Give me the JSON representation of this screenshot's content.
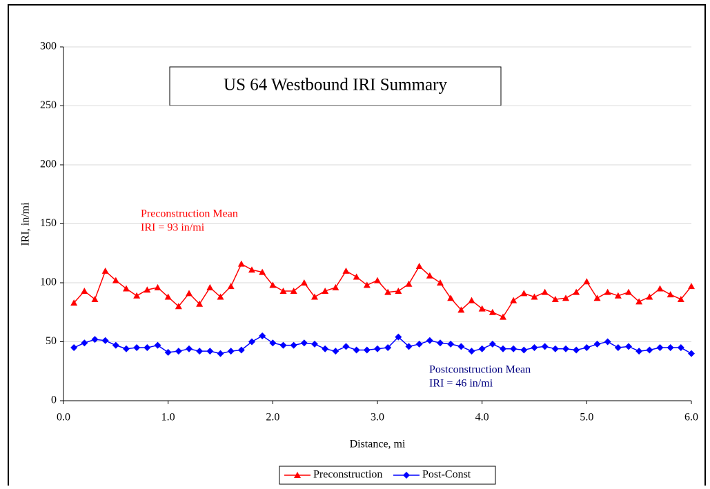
{
  "chart_data": {
    "type": "line",
    "title": "US 64 Westbound IRI Summary",
    "x_label": "Distance, mi",
    "y_label": "IRI, in/mi",
    "x": [
      0.1,
      0.2,
      0.3,
      0.4,
      0.5,
      0.6,
      0.7,
      0.8,
      0.9,
      1.0,
      1.1,
      1.2,
      1.3,
      1.4,
      1.5,
      1.6,
      1.7,
      1.8,
      1.9,
      2.0,
      2.1,
      2.2,
      2.3,
      2.4,
      2.5,
      2.6,
      2.7,
      2.8,
      2.9,
      3.0,
      3.1,
      3.2,
      3.3,
      3.4,
      3.5,
      3.6,
      3.7,
      3.8,
      3.9,
      4.0,
      4.1,
      4.2,
      4.3,
      4.4,
      4.5,
      4.6,
      4.7,
      4.8,
      4.9,
      5.0,
      5.1,
      5.2,
      5.3,
      5.4,
      5.5,
      5.6,
      5.7,
      5.8,
      5.9,
      6.0
    ],
    "series": [
      {
        "name": "Preconstruction",
        "color": "#ff0000",
        "marker": "triangle",
        "values": [
          83,
          93,
          86,
          110,
          102,
          95,
          89,
          94,
          96,
          88,
          80,
          91,
          82,
          96,
          88,
          97,
          116,
          111,
          109,
          98,
          93,
          93,
          100,
          88,
          93,
          96,
          110,
          105,
          98,
          102,
          92,
          93,
          99,
          114,
          106,
          100,
          87,
          77,
          85,
          78,
          75,
          71,
          85,
          91,
          88,
          92,
          86,
          87,
          92,
          101,
          87,
          92,
          89,
          92,
          84,
          88,
          95,
          90,
          86,
          97
        ]
      },
      {
        "name": "Post-Const",
        "color": "#0000ff",
        "marker": "diamond",
        "values": [
          45,
          49,
          52,
          51,
          47,
          44,
          45,
          45,
          47,
          41,
          42,
          44,
          42,
          42,
          40,
          42,
          43,
          50,
          55,
          49,
          47,
          47,
          49,
          48,
          44,
          42,
          46,
          43,
          43,
          44,
          45,
          54,
          46,
          48,
          51,
          49,
          48,
          46,
          42,
          44,
          48,
          44,
          44,
          43,
          45,
          46,
          44,
          44,
          43,
          45,
          48,
          50,
          45,
          46,
          42,
          43,
          45,
          45,
          45,
          40
        ]
      }
    ],
    "xlim": [
      0,
      6
    ],
    "ylim": [
      0,
      300
    ],
    "xticks": [
      {
        "value": 0,
        "label": "0.0"
      },
      {
        "value": 1,
        "label": "1.0"
      },
      {
        "value": 2,
        "label": "2.0"
      },
      {
        "value": 3,
        "label": "3.0"
      },
      {
        "value": 4,
        "label": "4.0"
      },
      {
        "value": 5,
        "label": "5.0"
      },
      {
        "value": 6,
        "label": "6.0"
      }
    ],
    "yticks": [
      0,
      50,
      100,
      150,
      200,
      250,
      300
    ],
    "grid": true,
    "legend": "bottom",
    "annotations": [
      {
        "lines": [
          "Preconstruction  Mean",
          "IRI = 93 in/mi"
        ],
        "color": "#ff0000"
      },
      {
        "lines": [
          "Postconstruction  Mean",
          "IRI =  46 in/mi"
        ],
        "color": "#000080"
      }
    ]
  }
}
